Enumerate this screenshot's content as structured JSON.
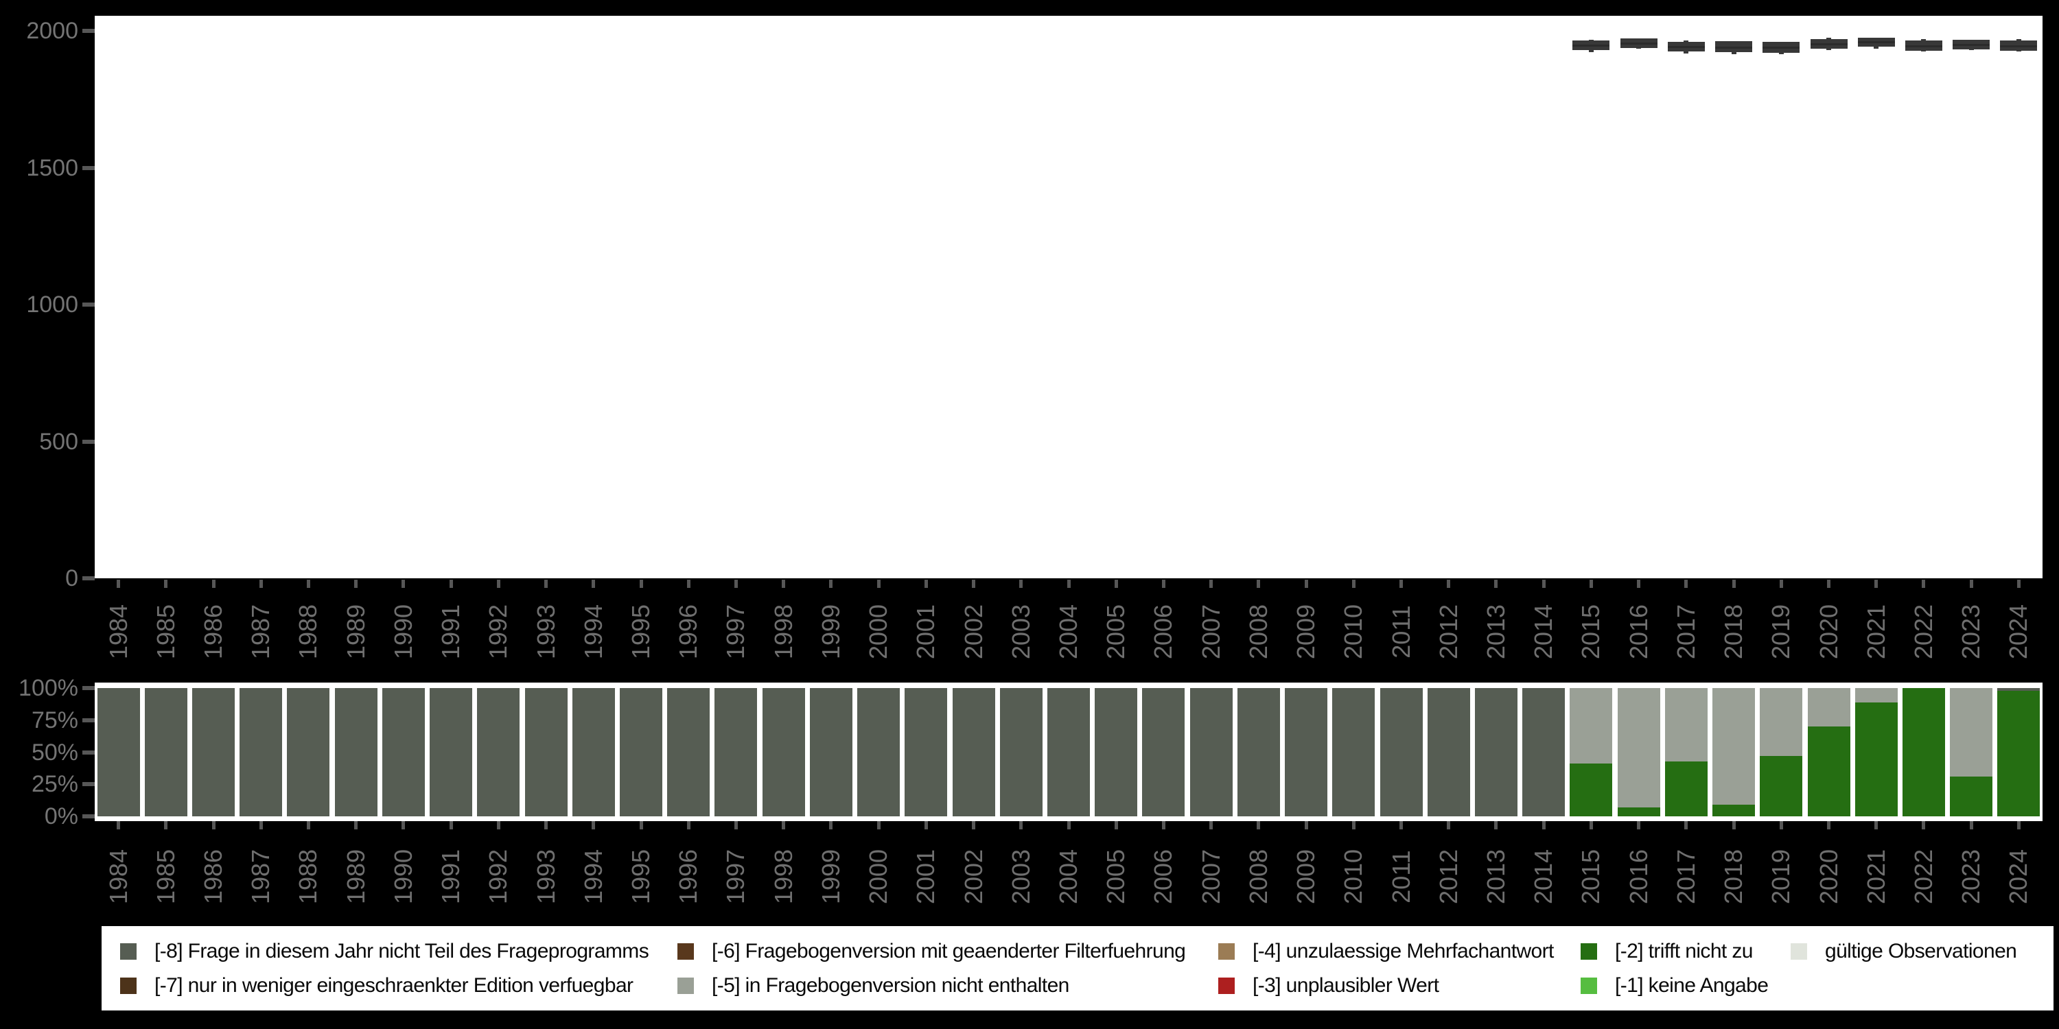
{
  "colors": {
    "page_background": "#000000",
    "panel_background": "#ffffff",
    "axis_text": "#717171",
    "tick_mark": "#575757",
    "boxplot_fill": "#383838",
    "legend_text": "#0a0a0a"
  },
  "legend": {
    "items": [
      {
        "code": "-8",
        "label": "[-8] Frage in diesem Jahr nicht Teil des Frageprogramms",
        "color": "#565D53"
      },
      {
        "code": "-7",
        "label": "[-7] nur in weniger eingeschraenkter Edition verfuegbar",
        "color": "#4D331A"
      },
      {
        "code": "-6",
        "label": "[-6] Fragebogenversion mit geaenderter Filterfuehrung",
        "color": "#59381D"
      },
      {
        "code": "-5",
        "label": "[-5] in Fragebogenversion nicht enthalten",
        "color": "#9AA096"
      },
      {
        "code": "-4",
        "label": "[-4] unzulaessige Mehrfachantwort",
        "color": "#9B7C55"
      },
      {
        "code": "-3",
        "label": "[-3] unplausibler Wert",
        "color": "#AD1F1F"
      },
      {
        "code": "-2",
        "label": "[-2] trifft nicht zu",
        "color": "#256E12"
      },
      {
        "code": "-1",
        "label": "[-1] keine Angabe",
        "color": "#56BD40"
      },
      {
        "code": "valid",
        "label": "gültige Observationen",
        "color": "#E0E4DC"
      }
    ],
    "column_order": [
      [
        "-8",
        "-7"
      ],
      [
        "-6",
        "-5"
      ],
      [
        "-4",
        "-3"
      ],
      [
        "-2",
        "-1"
      ],
      [
        "valid"
      ]
    ]
  },
  "chart_data": [
    {
      "type": "boxplot",
      "title": "",
      "xlabel": "",
      "ylabel": "",
      "ylim": [
        0,
        2058
      ],
      "yticks": [
        0,
        500,
        1000,
        1500,
        2000
      ],
      "grid": false,
      "x": [
        1984,
        1985,
        1986,
        1987,
        1988,
        1989,
        1990,
        1991,
        1992,
        1993,
        1994,
        1995,
        1996,
        1997,
        1998,
        1999,
        2000,
        2001,
        2002,
        2003,
        2004,
        2005,
        2006,
        2007,
        2008,
        2009,
        2010,
        2011,
        2012,
        2013,
        2014,
        2015,
        2016,
        2017,
        2018,
        2019,
        2020,
        2021,
        2022,
        2023,
        2024
      ],
      "boxes": [
        {
          "year": 2015,
          "whislo": 1922,
          "q1": 1930,
          "med": 1948,
          "q3": 1966,
          "whishi": 1968
        },
        {
          "year": 2016,
          "whislo": 1936,
          "q1": 1938,
          "med": 1955,
          "q3": 1972,
          "whishi": 1972
        },
        {
          "year": 2017,
          "whislo": 1918,
          "q1": 1925,
          "med": 1942,
          "q3": 1960,
          "whishi": 1966
        },
        {
          "year": 2018,
          "whislo": 1915,
          "q1": 1922,
          "med": 1941,
          "q3": 1962,
          "whishi": 1962
        },
        {
          "year": 2019,
          "whislo": 1914,
          "q1": 1921,
          "med": 1939,
          "q3": 1959,
          "whishi": 1959
        },
        {
          "year": 2020,
          "whislo": 1930,
          "q1": 1934,
          "med": 1952,
          "q3": 1969,
          "whishi": 1975
        },
        {
          "year": 2021,
          "whislo": 1934,
          "q1": 1942,
          "med": 1959,
          "q3": 1974,
          "whishi": 1976
        },
        {
          "year": 2022,
          "whislo": 1924,
          "q1": 1928,
          "med": 1946,
          "q3": 1964,
          "whishi": 1970
        },
        {
          "year": 2023,
          "whislo": 1929,
          "q1": 1933,
          "med": 1951,
          "q3": 1968,
          "whishi": 1968
        },
        {
          "year": 2024,
          "whislo": 1924,
          "q1": 1928,
          "med": 1946,
          "q3": 1964,
          "whishi": 1970
        }
      ],
      "note": "only years 2015-2024 have observed values; boxes cluster around 1915-1975 on the 0-2000 scale"
    },
    {
      "type": "bar",
      "stacked": true,
      "units": "percent",
      "title": "",
      "xlabel": "",
      "ylabel": "",
      "ylim": [
        0,
        100
      ],
      "yticks": [
        0,
        25,
        50,
        75,
        100
      ],
      "y_tick_labels": [
        "0%",
        "25%",
        "50%",
        "75%",
        "100%"
      ],
      "legend_position": "bottom",
      "categories": [
        1984,
        1985,
        1986,
        1987,
        1988,
        1989,
        1990,
        1991,
        1992,
        1993,
        1994,
        1995,
        1996,
        1997,
        1998,
        1999,
        2000,
        2001,
        2002,
        2003,
        2004,
        2005,
        2006,
        2007,
        2008,
        2009,
        2010,
        2011,
        2012,
        2013,
        2014,
        2015,
        2016,
        2017,
        2018,
        2019,
        2020,
        2021,
        2022,
        2023,
        2024
      ],
      "series": [
        {
          "name": "[-2] trifft nicht zu",
          "color": "#256E12",
          "values": [
            0,
            0,
            0,
            0,
            0,
            0,
            0,
            0,
            0,
            0,
            0,
            0,
            0,
            0,
            0,
            0,
            0,
            0,
            0,
            0,
            0,
            0,
            0,
            0,
            0,
            0,
            0,
            0,
            0,
            0,
            0,
            41,
            7,
            43,
            9,
            47,
            70,
            89,
            100,
            31,
            98
          ]
        },
        {
          "name": "[-5] in Fragebogenversion nicht enthalten",
          "color": "#9AA096",
          "values": [
            0,
            0,
            0,
            0,
            0,
            0,
            0,
            0,
            0,
            0,
            0,
            0,
            0,
            0,
            0,
            0,
            0,
            0,
            0,
            0,
            0,
            0,
            0,
            0,
            0,
            0,
            0,
            0,
            0,
            0,
            0,
            59,
            93,
            57,
            91,
            53,
            30,
            11,
            0,
            69,
            0
          ]
        },
        {
          "name": "[-8] Frage in diesem Jahr nicht Teil des Frageprogramms",
          "color": "#565D53",
          "values": [
            100,
            100,
            100,
            100,
            100,
            100,
            100,
            100,
            100,
            100,
            100,
            100,
            100,
            100,
            100,
            100,
            100,
            100,
            100,
            100,
            100,
            100,
            100,
            100,
            100,
            100,
            100,
            100,
            100,
            100,
            100,
            0,
            0,
            0,
            0,
            0,
            0,
            0,
            0,
            0,
            2
          ]
        }
      ]
    }
  ]
}
